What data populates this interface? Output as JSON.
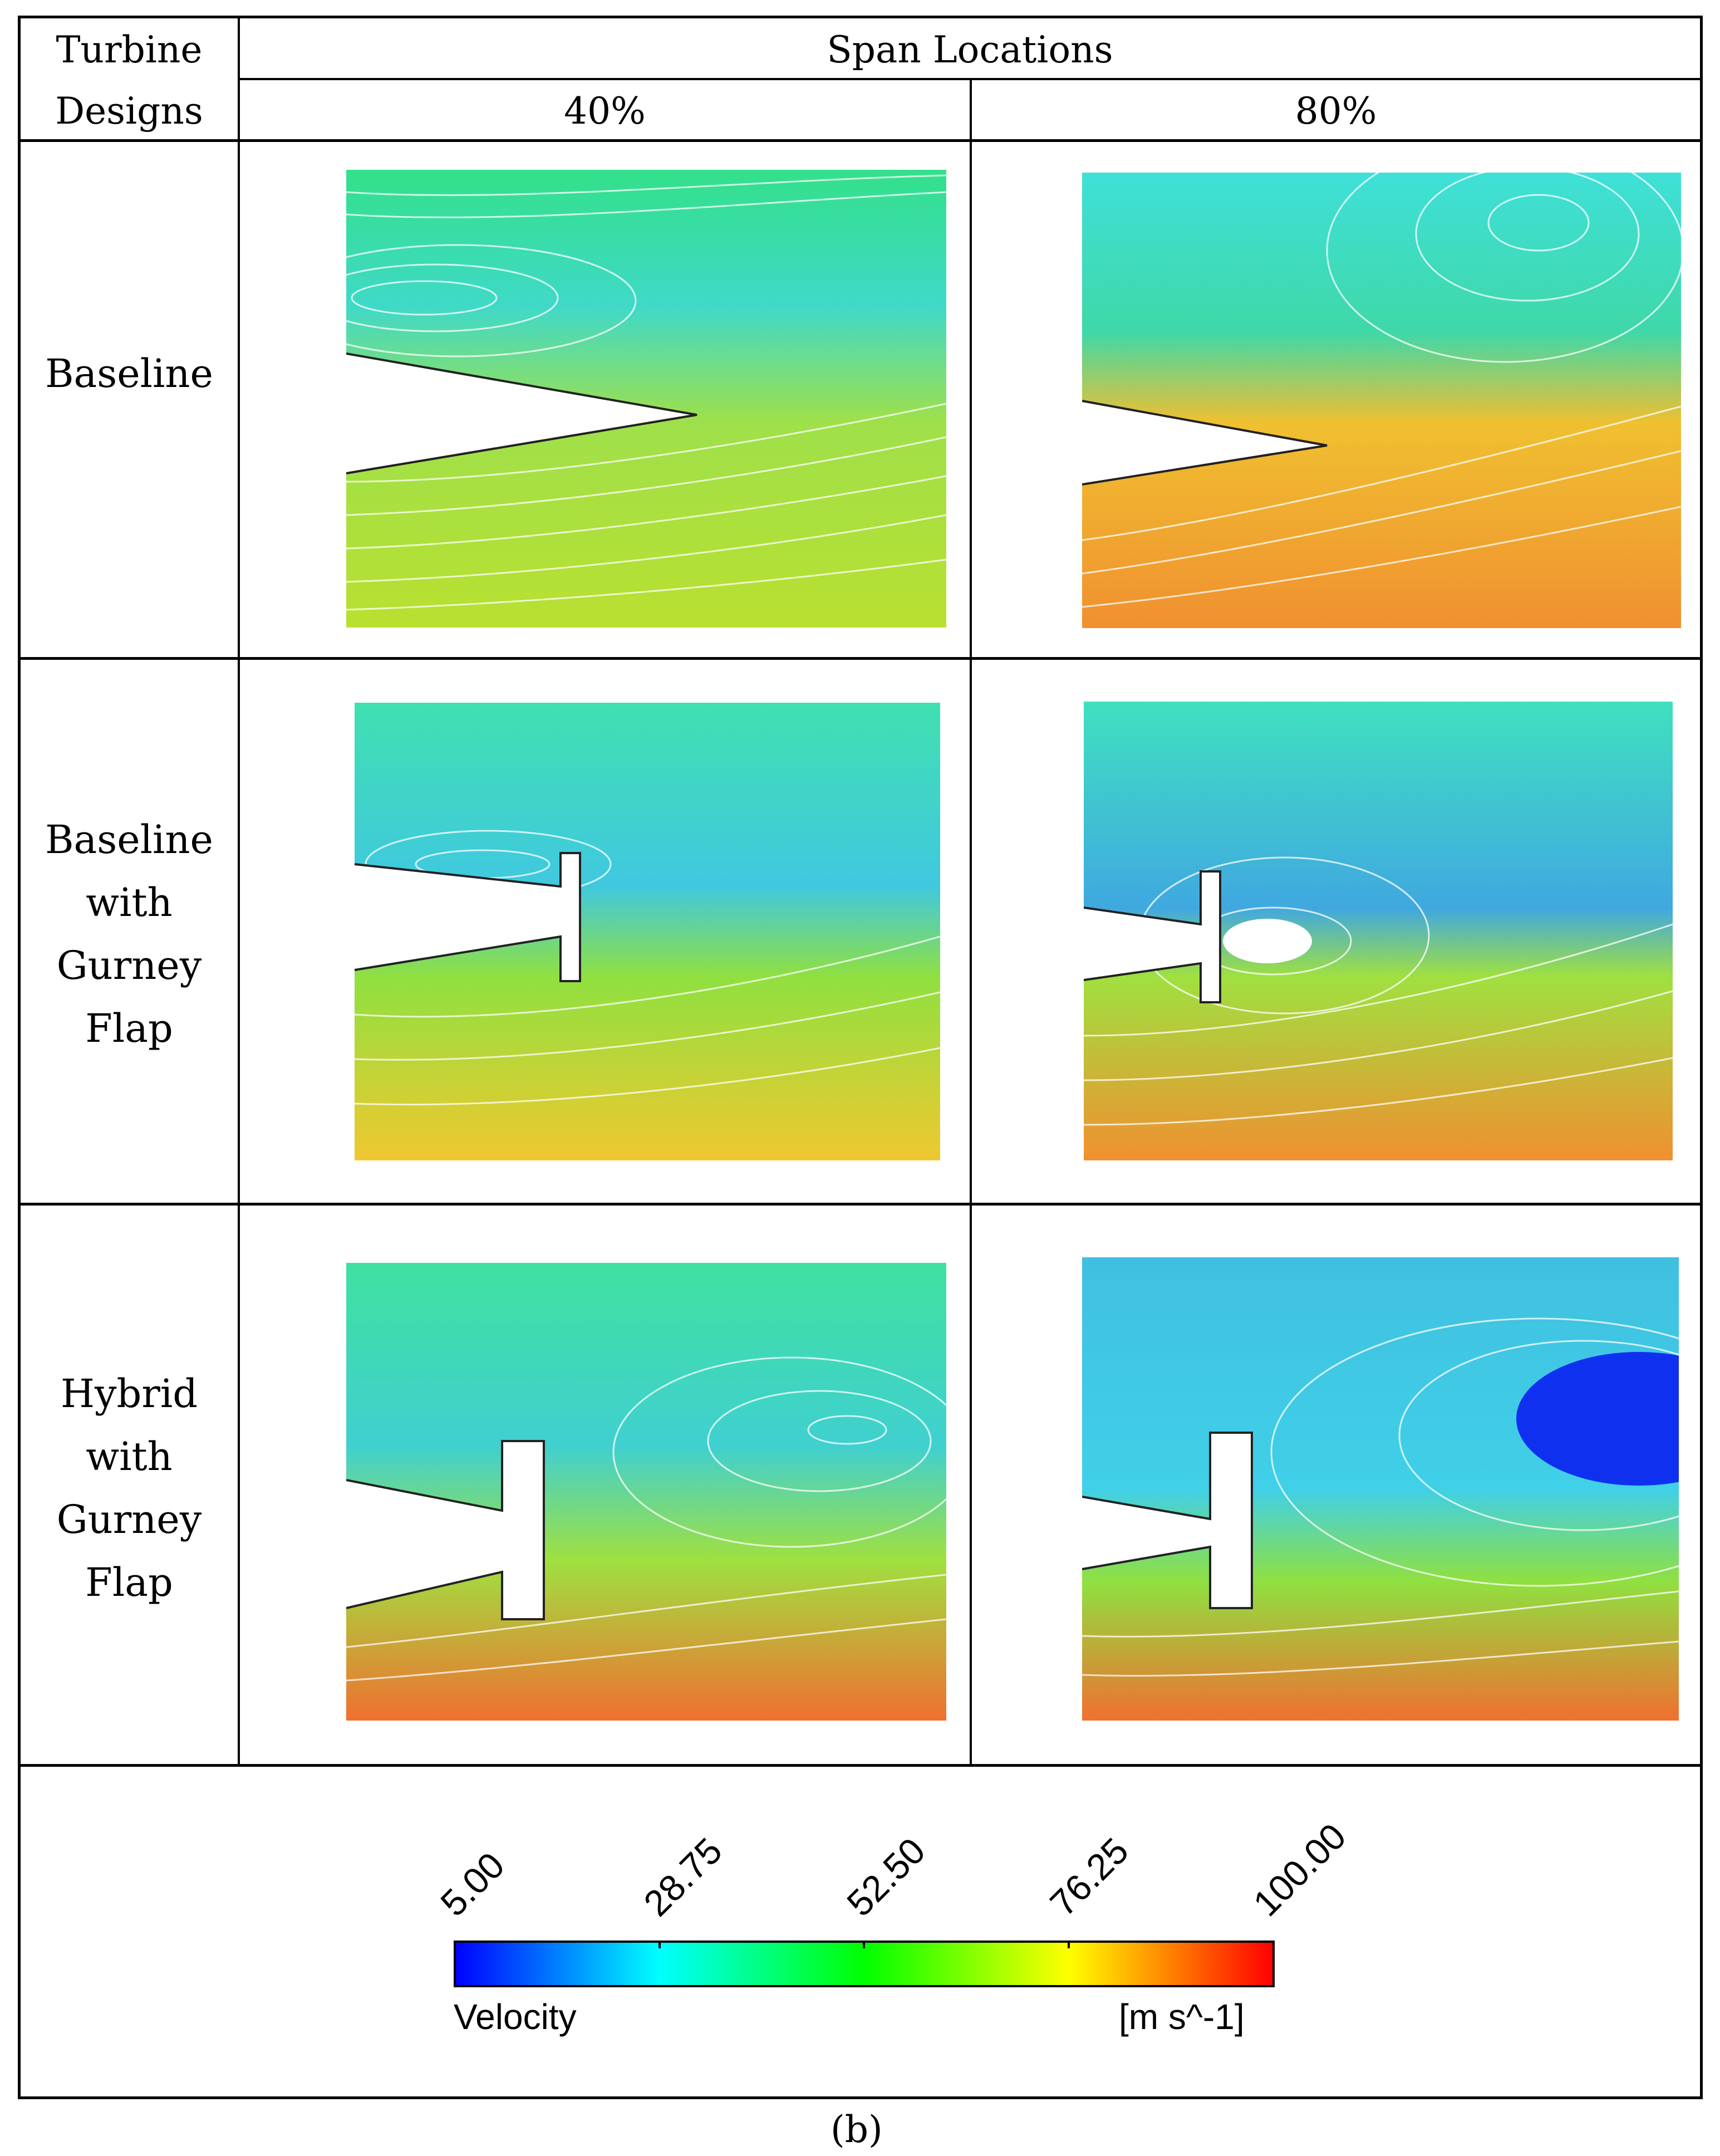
{
  "table": {
    "col_header_designs": [
      "Turbine",
      "Designs"
    ],
    "col_header_span": "Span Locations",
    "span_40": "40%",
    "span_80": "80%",
    "rows": [
      {
        "lines": [
          "Baseline"
        ]
      },
      {
        "lines": [
          "Baseline",
          "with",
          "Gurney",
          "Flap"
        ]
      },
      {
        "lines": [
          "Hybrid",
          "with",
          "Gurney",
          "Flap"
        ]
      }
    ]
  },
  "legend": {
    "ticks": [
      "5.00",
      "28.75",
      "52.50",
      "76.25",
      "100.00"
    ],
    "quantity": "Velocity",
    "unit": "[m s^-1]",
    "min": 5.0,
    "max": 100.0,
    "colors": [
      "#0000ff",
      "#00ffff",
      "#00ff00",
      "#ffff00",
      "#ff0000"
    ]
  },
  "caption": "(b)"
}
